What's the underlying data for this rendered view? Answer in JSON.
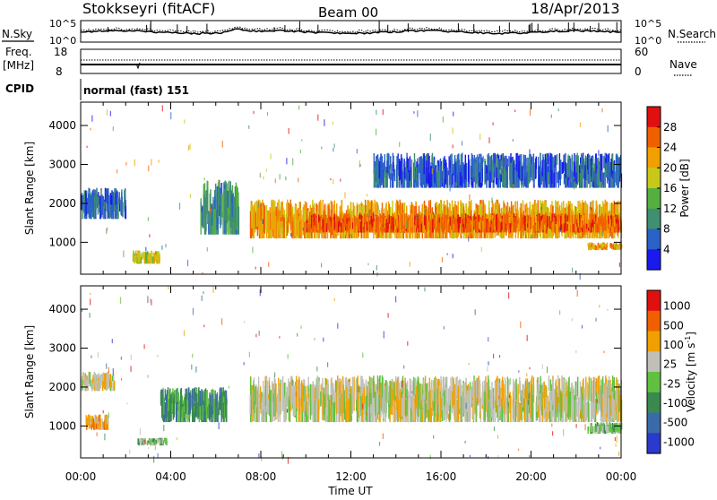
{
  "header": {
    "station": "Stokkseyri (fitACF)",
    "beam": "Beam 00",
    "date": "18/Apr/2013"
  },
  "sky_panel": {
    "left_label": "N.Sky",
    "left_tick_top": "10^5",
    "left_tick_bottom": "10^0",
    "right_tick_top": "10^5",
    "right_tick_bottom": "10^0",
    "right_label": "N.Search"
  },
  "freq_panel": {
    "left_label_1": "Freq.",
    "left_label_2": "[MHz]",
    "left_tick_top": "18",
    "left_tick_bottom": "8",
    "right_tick_top": "60",
    "right_tick_bottom": "0",
    "right_label": "Nave"
  },
  "cpid_panel": {
    "label": "CPID",
    "mode": "normal (fast) 151"
  },
  "chart_data": [
    {
      "type": "heatmap",
      "quantity": "Power",
      "ylabel": "Slant Range [km]",
      "ylim": [
        180,
        4600
      ],
      "yticks": [
        "1000",
        "2000",
        "3000",
        "4000"
      ],
      "colorbar_label": "Power [dB]",
      "colorbar_ticks": [
        "4",
        "8",
        "12",
        "16",
        "20",
        "24",
        "28"
      ],
      "colors": [
        "#1a1aee",
        "#2a62c8",
        "#3f8f70",
        "#55b040",
        "#c8c818",
        "#f0a000",
        "#f06000",
        "#e01010"
      ],
      "regions": [
        {
          "t0": 0.0,
          "t1": 2.0,
          "r0": 1600,
          "r1": 2400,
          "level": 1
        },
        {
          "t0": 2.3,
          "t1": 3.5,
          "r0": 450,
          "r1": 800,
          "level": 4
        },
        {
          "t0": 5.3,
          "t1": 7.0,
          "r0": 1200,
          "r1": 2600,
          "level": 2
        },
        {
          "t0": 7.5,
          "t1": 24.0,
          "r0": 1100,
          "r1": 2100,
          "level": 5
        },
        {
          "t0": 10.0,
          "t1": 24.0,
          "r0": 1250,
          "r1": 1750,
          "level": 6
        },
        {
          "t0": 13.0,
          "t1": 24.0,
          "r0": 2400,
          "r1": 3300,
          "level": 1
        },
        {
          "t0": 22.5,
          "t1": 24.0,
          "r0": 800,
          "r1": 1000,
          "level": 5
        }
      ]
    },
    {
      "type": "heatmap",
      "quantity": "Velocity",
      "xlabel": "Time UT",
      "ylabel": "Slant Range [km]",
      "ylim": [
        180,
        4600
      ],
      "yticks": [
        "1000",
        "2000",
        "3000",
        "4000"
      ],
      "xticks": [
        "00:00",
        "04:00",
        "08:00",
        "12:00",
        "16:00",
        "20:00",
        "00:00"
      ],
      "xlim_hours": [
        0,
        24
      ],
      "colorbar_label": "Velocity [m s",
      "colorbar_label_sup": "-1",
      "colorbar_ticks": [
        "1000",
        "500",
        "100",
        "25",
        "-25",
        "-100",
        "-500",
        "-1000"
      ],
      "colors": [
        "#2a3acc",
        "#3a6aa8",
        "#3a8a50",
        "#60c040",
        "#c0c0b8",
        "#f0a000",
        "#f06000",
        "#e01010"
      ],
      "regions": [
        {
          "t0": 0.0,
          "t1": 1.5,
          "r0": 1900,
          "r1": 2400,
          "level": 4
        },
        {
          "t0": 0.2,
          "t1": 1.2,
          "r0": 900,
          "r1": 1300,
          "level": 5
        },
        {
          "t0": 2.5,
          "t1": 3.8,
          "r0": 500,
          "r1": 700,
          "level": 3
        },
        {
          "t0": 3.5,
          "t1": 6.5,
          "r0": 1100,
          "r1": 2000,
          "level": 2
        },
        {
          "t0": 7.5,
          "t1": 24.0,
          "r0": 1100,
          "r1": 2300,
          "level": 4
        },
        {
          "t0": 22.5,
          "t1": 24.0,
          "r0": 800,
          "r1": 1100,
          "level": 3
        }
      ]
    }
  ]
}
